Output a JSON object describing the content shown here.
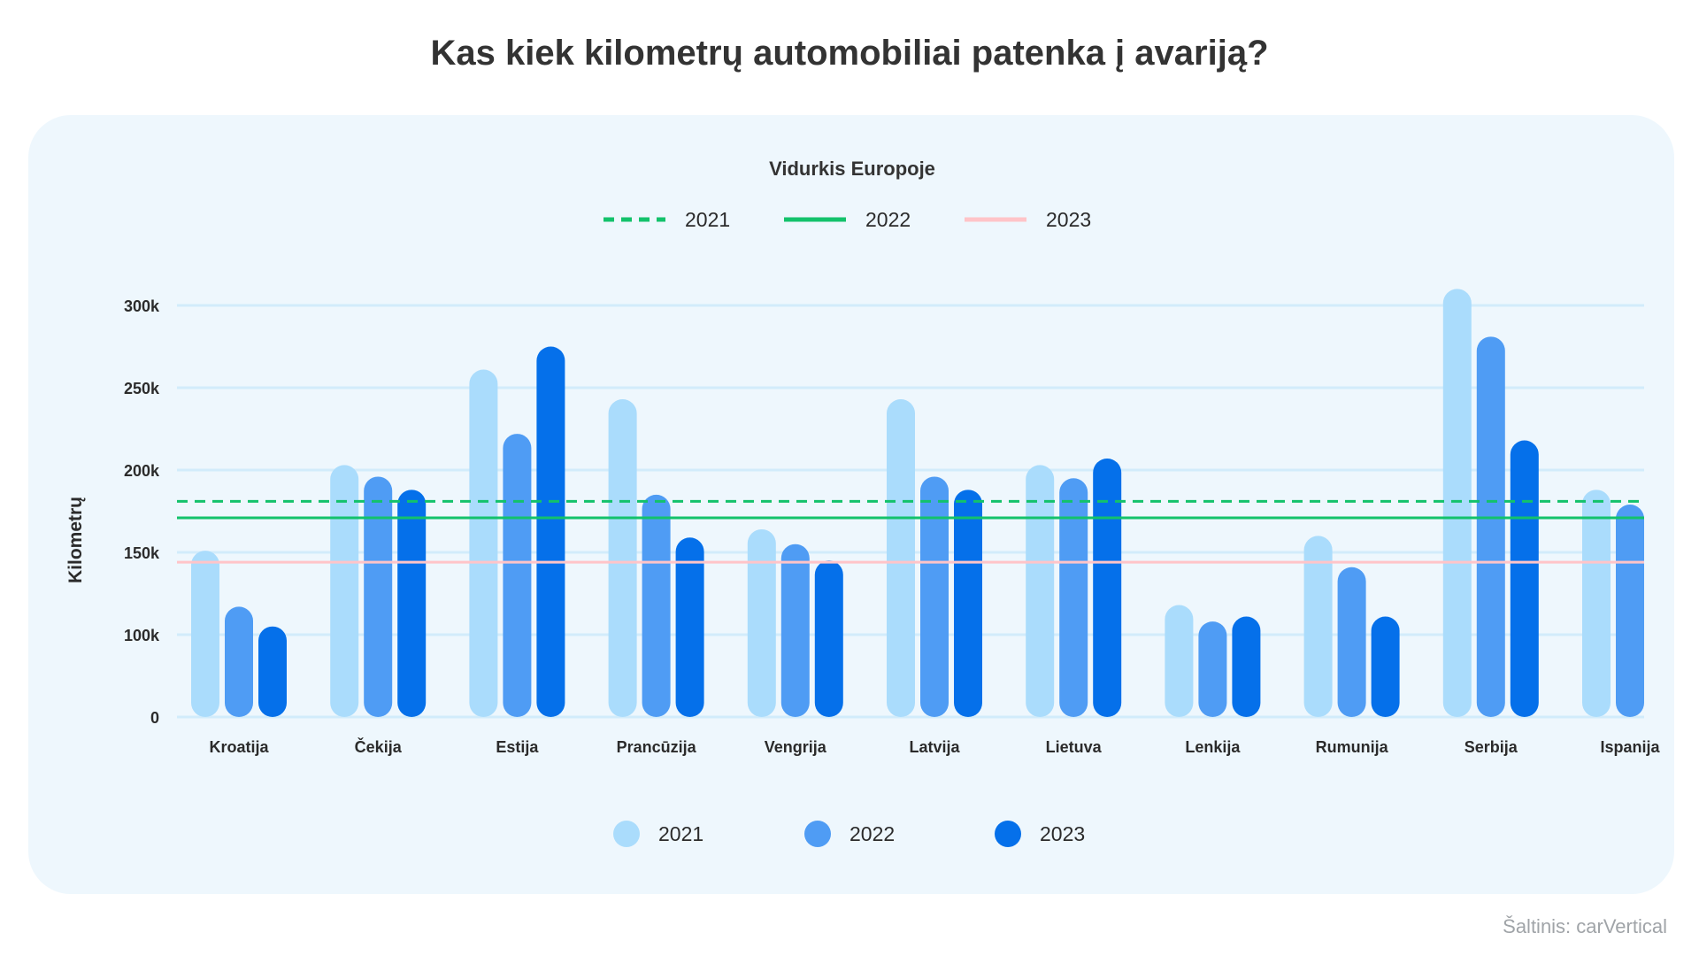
{
  "title": "Kas kiek kilometrų automobiliai patenka į avariją?",
  "source": "Šaltinis: carVertical",
  "chart_data": {
    "type": "bar",
    "title": "Kas kiek kilometrų automobiliai patenka į avariją?",
    "ylabel": "Kilometrų",
    "xlabel": "",
    "ylim": [
      0,
      310000
    ],
    "yticks": [
      {
        "value": 0,
        "label": "0"
      },
      {
        "value": 100000,
        "label": "100k"
      },
      {
        "value": 150000,
        "label": "150k"
      },
      {
        "value": 200000,
        "label": "200k"
      },
      {
        "value": 250000,
        "label": "250k"
      },
      {
        "value": 300000,
        "label": "300k"
      }
    ],
    "grid": true,
    "categories": [
      "Kroatija",
      "Čekija",
      "Estija",
      "Prancūzija",
      "Vengrija",
      "Latvija",
      "Lietuva",
      "Lenkija",
      "Rumunija",
      "Serbija",
      "Ispanija"
    ],
    "series": [
      {
        "name": "2021",
        "color": "#aadcfc",
        "values": [
          151000,
          203000,
          261000,
          243000,
          164000,
          243000,
          203000,
          118000,
          160000,
          310000,
          188000
        ]
      },
      {
        "name": "2022",
        "color": "#4f9cf4",
        "values": [
          117000,
          196000,
          222000,
          185000,
          155000,
          196000,
          195000,
          108000,
          141000,
          281000,
          179000
        ]
      },
      {
        "name": "2023",
        "color": "#0570ea",
        "values": [
          105000,
          188000,
          275000,
          159000,
          145000,
          188000,
          207000,
          111000,
          111000,
          218000,
          null
        ]
      }
    ],
    "legend_position": "bottom-center",
    "reference_lines": {
      "title": "Vidurkis Europoje",
      "legend_position": "top-center",
      "lines": [
        {
          "name": "2021",
          "value": 181000,
          "style": "dashed",
          "color": "#13c26b"
        },
        {
          "name": "2022",
          "value": 171000,
          "style": "solid",
          "color": "#13c26b"
        },
        {
          "name": "2023",
          "value": 144000,
          "style": "solid",
          "color": "#ffc4c8"
        }
      ]
    }
  }
}
